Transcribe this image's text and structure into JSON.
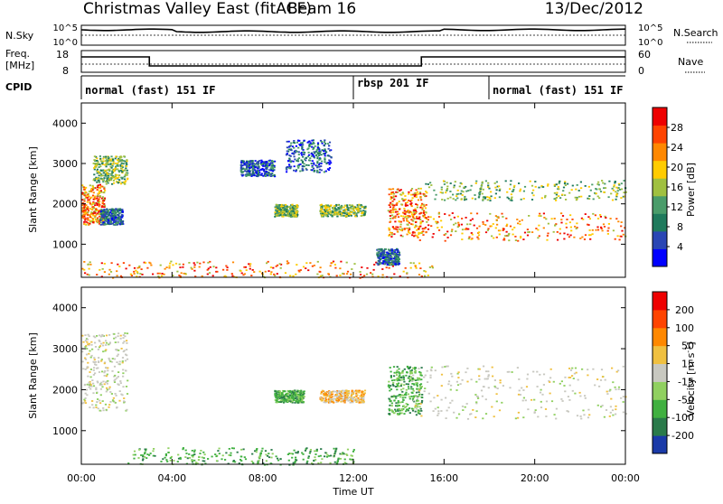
{
  "header": {
    "station": "Christmas Valley East (fitACF)",
    "beam": "Beam 16",
    "date": "13/Dec/2012"
  },
  "noise_panel": {
    "left_label": "N.Sky",
    "left_ticks": [
      "10^5",
      "10^0"
    ],
    "right_label": "N.Search",
    "right_ticks": [
      "10^5",
      "10^0"
    ]
  },
  "freq_panel": {
    "left_label_1": "Freq.",
    "left_label_2": "[MHz]",
    "left_ticks": [
      "18",
      "8"
    ],
    "right_label": "Nave",
    "right_ticks": [
      "60",
      "0"
    ]
  },
  "cpid_panel": {
    "label": "CPID",
    "modes": [
      {
        "text": "normal (fast) 151 IF",
        "start_h": 0,
        "end_h": 12.0
      },
      {
        "text": "rbsp 201 IF",
        "start_h": 12.0,
        "end_h": 18.0
      },
      {
        "text": "normal (fast) 151 IF",
        "start_h": 18.0,
        "end_h": 24.0
      }
    ]
  },
  "chart_data": [
    {
      "type": "heatmap",
      "title": "Power",
      "ylabel": "Slant Range [km]",
      "xlabel": "Time UT",
      "xlim": [
        0,
        24
      ],
      "ylim": [
        180,
        4500
      ],
      "x_ticks": [
        "00:00",
        "04:00",
        "08:00",
        "12:00",
        "16:00",
        "20:00",
        "00:00"
      ],
      "y_ticks": [
        1000,
        2000,
        3000,
        4000
      ],
      "colorbar": {
        "label": "Power [dB]",
        "ticks": [
          "4",
          "8",
          "12",
          "16",
          "20",
          "24",
          "28"
        ],
        "colors": [
          "#0000ff",
          "#2a46b4",
          "#1f7a5c",
          "#4a9c6a",
          "#a0c040",
          "#ffcc00",
          "#ff8800",
          "#ff4400",
          "#ee0000"
        ]
      },
      "regions": [
        {
          "t0": 0.0,
          "t1": 1.0,
          "r0": 1500,
          "r1": 2500,
          "level": "high"
        },
        {
          "t0": 0.5,
          "t1": 2.0,
          "r0": 2500,
          "r1": 3200,
          "level": "mid"
        },
        {
          "t0": 0.8,
          "t1": 1.8,
          "r0": 1500,
          "r1": 1900,
          "level": "low"
        },
        {
          "t0": 7.0,
          "t1": 8.5,
          "r0": 2700,
          "r1": 3100,
          "level": "low"
        },
        {
          "t0": 8.5,
          "t1": 9.5,
          "r0": 1700,
          "r1": 2000,
          "level": "mid"
        },
        {
          "t0": 10.5,
          "t1": 12.5,
          "r0": 1700,
          "r1": 2000,
          "level": "mid"
        },
        {
          "t0": 9.0,
          "t1": 11.0,
          "r0": 2800,
          "r1": 3600,
          "level": "low"
        },
        {
          "t0": 13.5,
          "t1": 15.2,
          "r0": 1200,
          "r1": 2400,
          "level": "high"
        },
        {
          "t0": 14.5,
          "t1": 24.0,
          "r0": 1100,
          "r1": 1800,
          "level": "high"
        },
        {
          "t0": 15.0,
          "t1": 24.0,
          "r0": 2100,
          "r1": 2600,
          "level": "mid"
        },
        {
          "t0": 0.0,
          "t1": 15.5,
          "r0": 180,
          "r1": 600,
          "level": "high"
        },
        {
          "t0": 13.0,
          "t1": 14.0,
          "r0": 500,
          "r1": 900,
          "level": "low"
        }
      ]
    },
    {
      "type": "heatmap",
      "title": "Velocity",
      "ylabel": "Slant Range [km]",
      "xlabel": "Time UT",
      "xlim": [
        0,
        24
      ],
      "ylim": [
        180,
        4500
      ],
      "x_ticks": [
        "00:00",
        "04:00",
        "08:00",
        "12:00",
        "16:00",
        "20:00",
        "00:00"
      ],
      "y_ticks": [
        1000,
        2000,
        3000,
        4000
      ],
      "colorbar": {
        "label": "Velocity [m s",
        "unit_superscript": "-1",
        "unit_close": "]",
        "ticks": [
          "200",
          "100",
          "50",
          "15",
          "-15",
          "-50",
          "-100",
          "-200"
        ],
        "colors": [
          "#1a3aa8",
          "#2a7a4a",
          "#40b040",
          "#90d060",
          "#c8c8c0",
          "#f0c040",
          "#ff8800",
          "#ff4400",
          "#ee0000"
        ]
      },
      "regions": [
        {
          "t0": 0.0,
          "t1": 2.0,
          "r0": 1500,
          "r1": 3400,
          "level": "grey"
        },
        {
          "t0": 8.5,
          "t1": 9.8,
          "r0": 1700,
          "r1": 2000,
          "level": "green"
        },
        {
          "t0": 10.5,
          "t1": 12.5,
          "r0": 1700,
          "r1": 2000,
          "level": "orange"
        },
        {
          "t0": 13.5,
          "t1": 15.0,
          "r0": 1400,
          "r1": 2600,
          "level": "green"
        },
        {
          "t0": 14.5,
          "t1": 24.0,
          "r0": 1300,
          "r1": 2600,
          "level": "grey"
        },
        {
          "t0": 2.0,
          "t1": 12.0,
          "r0": 180,
          "r1": 600,
          "level": "green"
        }
      ]
    }
  ]
}
